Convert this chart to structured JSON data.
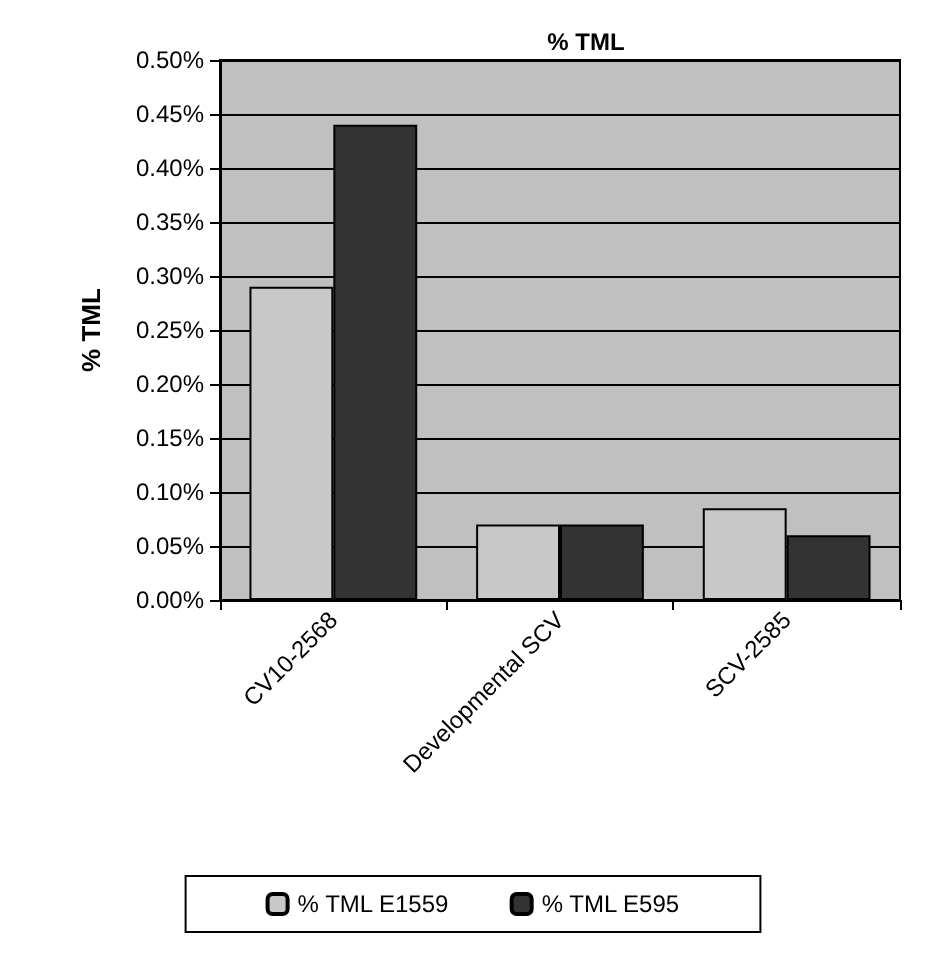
{
  "chart_data": {
    "type": "bar",
    "title": "% TML",
    "ylabel": "% TML",
    "categories": [
      "CV10-2568",
      "Developmental SCV",
      "SCV-2585"
    ],
    "series": [
      {
        "name": "% TML E1559",
        "color": "#c8c8c8",
        "values": [
          0.29,
          0.07,
          0.085
        ]
      },
      {
        "name": "% TML E595",
        "color": "#333333",
        "values": [
          0.44,
          0.07,
          0.06
        ]
      }
    ],
    "ylim": [
      0,
      0.5
    ],
    "yticks": [
      {
        "value": 0,
        "label": "0.00%"
      },
      {
        "value": 0.05,
        "label": "0.05%"
      },
      {
        "value": 0.1,
        "label": "0.10%"
      },
      {
        "value": 0.15,
        "label": "0.15%"
      },
      {
        "value": 0.2,
        "label": "0.20%"
      },
      {
        "value": 0.25,
        "label": "0.25%"
      },
      {
        "value": 0.3,
        "label": "0.30%"
      },
      {
        "value": 0.35,
        "label": "0.35%"
      },
      {
        "value": 0.4,
        "label": "0.40%"
      },
      {
        "value": 0.45,
        "label": "0.45%"
      },
      {
        "value": 0.5,
        "label": "0.50%"
      }
    ],
    "grid": true,
    "legend": "bottom"
  }
}
